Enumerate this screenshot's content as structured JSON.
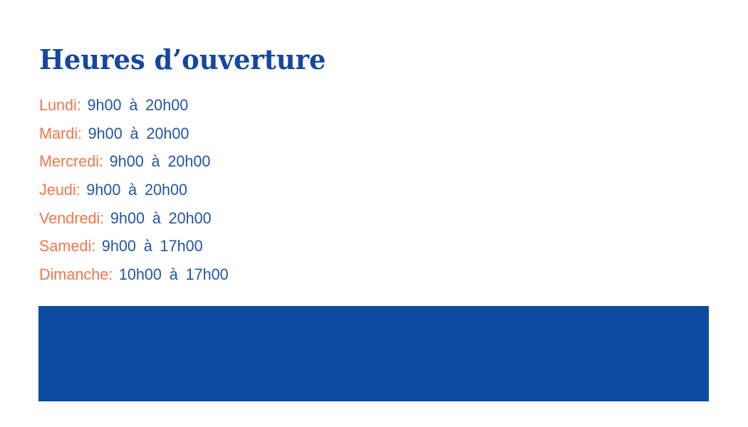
{
  "title": {
    "text": "Heures d’ouverture",
    "color": "#14479f"
  },
  "hours": {
    "label_color": "#f2764a",
    "time_color": "#2355a6",
    "items": [
      {
        "day": "Lundi:",
        "time": "9h00 à 20h00"
      },
      {
        "day": "Mardi:",
        "time": "9h00 à 20h00"
      },
      {
        "day": "Mercredi:",
        "time": "9h00 à 20h00"
      },
      {
        "day": "Jeudi:",
        "time": "9h00 à 20h00"
      },
      {
        "day": "Vendredi:",
        "time": "9h00 à 20h00"
      },
      {
        "day": "Samedi:",
        "time": "9h00 à 17h00"
      },
      {
        "day": "Dimanche:",
        "time": "10h00 à 17h00"
      }
    ]
  },
  "footer_block": {
    "color": "#0c4ca0"
  }
}
